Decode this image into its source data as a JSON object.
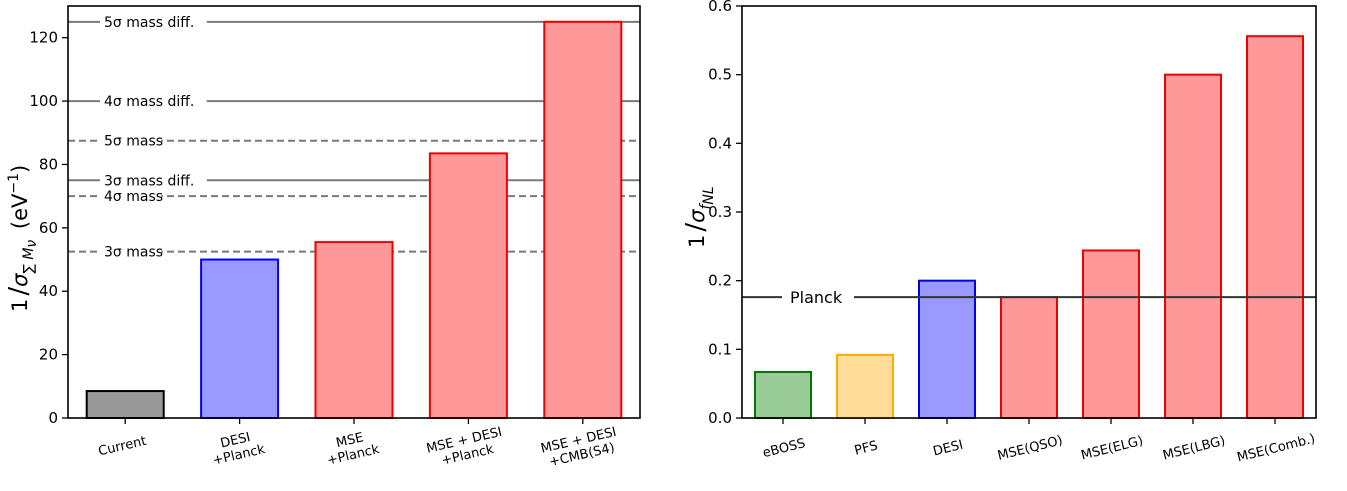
{
  "chart_data": [
    {
      "type": "bar",
      "categories": [
        "Current",
        "DESI\n+Planck",
        "MSE\n+Planck",
        "MSE + DESI\n+Planck",
        "MSE + DESI\n+CMB(S4)"
      ],
      "values": [
        8.5,
        50,
        55.5,
        83.5,
        125
      ],
      "bar_fill": [
        "#999999",
        "#9999ff",
        "#ff9999",
        "#ff9999",
        "#ff9999"
      ],
      "bar_edge": [
        "#000000",
        "#0000ee",
        "#ee0000",
        "#ee0000",
        "#ee0000"
      ],
      "ylim": [
        0,
        130
      ],
      "yticks": [
        0,
        20,
        40,
        60,
        80,
        100,
        120
      ],
      "ylabel_prefix": "1",
      "ylabel_sigma": "σ",
      "ylabel_sub": "∑ M",
      "ylabel_sub2": "ν",
      "ylabel_unit": "(eV",
      "ylabel_exp": "−1",
      "ylabel_close": ")",
      "hlines": [
        {
          "y": 125,
          "style": "solid",
          "label": "5σ mass diff."
        },
        {
          "y": 100,
          "style": "solid",
          "label": "4σ mass diff."
        },
        {
          "y": 87.5,
          "style": "dashed",
          "label": "5σ mass"
        },
        {
          "y": 75,
          "style": "solid",
          "label": "3σ mass diff."
        },
        {
          "y": 70,
          "style": "dashed",
          "label": "4σ mass"
        },
        {
          "y": 52.5,
          "style": "dashed",
          "label": "3σ mass"
        }
      ]
    },
    {
      "type": "bar",
      "categories": [
        "eBOSS",
        "PFS",
        "DESI",
        "MSE(QSO)",
        "MSE(ELG)",
        "MSE(LBG)",
        "MSE(Comb.)"
      ],
      "values": [
        0.067,
        0.092,
        0.2,
        0.176,
        0.244,
        0.5,
        0.556
      ],
      "bar_fill": [
        "#99cc99",
        "#ffdd99",
        "#9999ff",
        "#ff9999",
        "#ff9999",
        "#ff9999",
        "#ff9999"
      ],
      "bar_edge": [
        "#007700",
        "#ffaa00",
        "#0000ee",
        "#ee0000",
        "#ee0000",
        "#ee0000",
        "#ee0000"
      ],
      "ylim": [
        0,
        0.6
      ],
      "yticks": [
        "0.0",
        "0.1",
        "0.2",
        "0.3",
        "0.4",
        "0.5",
        "0.6"
      ],
      "ylabel_prefix": "1",
      "ylabel_sigma": "σ",
      "ylabel_sub": "f",
      "ylabel_sub2": "NL",
      "hlines": [
        {
          "y": 0.176,
          "style": "solid",
          "label": "Planck"
        }
      ]
    }
  ]
}
